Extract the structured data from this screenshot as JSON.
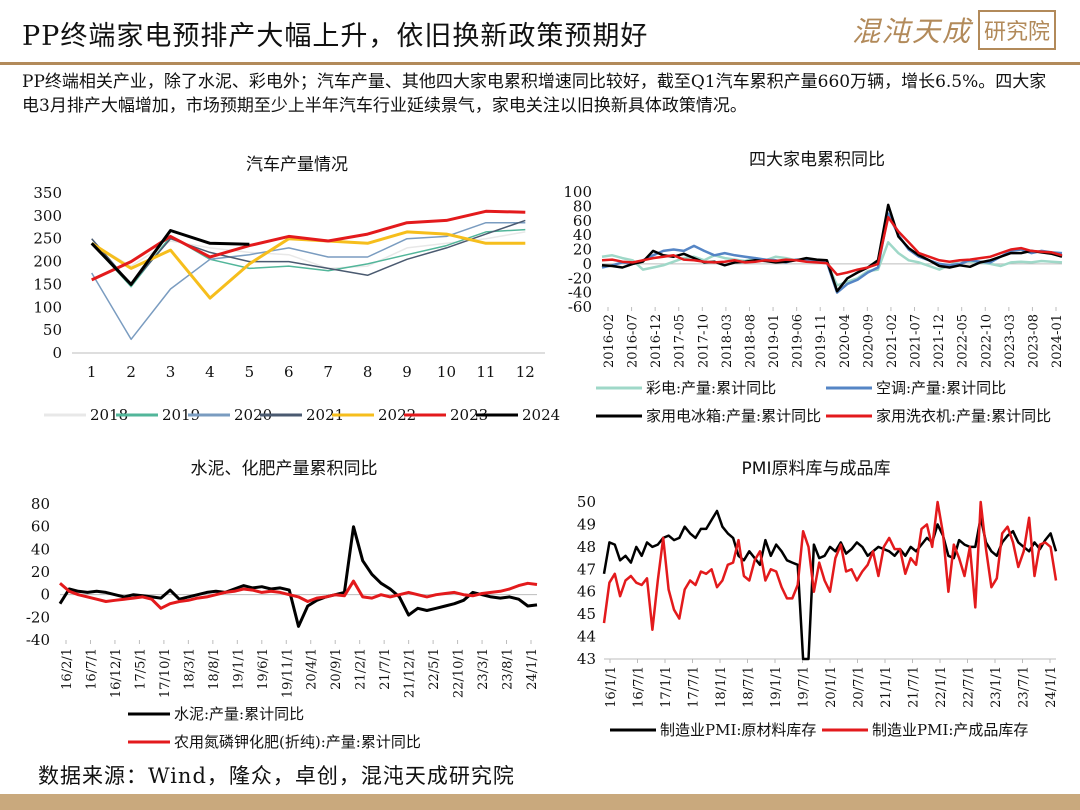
{
  "header": {
    "title": "PP终端家电预排产大幅上升，依旧换新政策预期好",
    "logo_text": "混沌天成",
    "logo_box_text": "研究院"
  },
  "summary": "PP终端相关产业，除了水泥、彩电外；汽车产量、其他四大家电累积增速同比较好，截至Q1汽车累积产量660万辆，增长6.5%。四大家电3月排产大幅增加，市场预期至少上半年汽车行业延续景气，家电关注以旧换新具体政策情况。",
  "footer": {
    "source": "数据来源：Wind，隆众，卓创，混沌天成研究院"
  },
  "colors": {
    "accent": "#b28a5a",
    "footer_band": "#c9a97d"
  },
  "chart_data": [
    {
      "type": "line",
      "title": "汽车产量情况",
      "categories": [
        "1",
        "2",
        "3",
        "4",
        "5",
        "6",
        "7",
        "8",
        "9",
        "10",
        "11",
        "12"
      ],
      "ylim": [
        0,
        350
      ],
      "yticks": [
        0,
        50,
        100,
        150,
        200,
        250,
        300,
        350
      ],
      "legend_position": "bottom",
      "series": [
        {
          "name": "2018",
          "color": "#e8e8e8",
          "width": 1.5,
          "values": [
            240,
            190,
            245,
            230,
            220,
            215,
            185,
            190,
            230,
            240,
            250,
            265
          ]
        },
        {
          "name": "2019",
          "color": "#52b69a",
          "width": 1.5,
          "values": [
            240,
            145,
            255,
            205,
            185,
            190,
            180,
            195,
            215,
            235,
            265,
            270
          ]
        },
        {
          "name": "2020",
          "color": "#7a9cc0",
          "width": 1.5,
          "values": [
            175,
            30,
            140,
            205,
            215,
            230,
            210,
            210,
            250,
            255,
            285,
            285
          ]
        },
        {
          "name": "2021",
          "color": "#4a5a70",
          "width": 1.5,
          "values": [
            250,
            150,
            250,
            220,
            200,
            200,
            185,
            170,
            205,
            230,
            260,
            290
          ]
        },
        {
          "name": "2022",
          "color": "#f6be1c",
          "width": 3,
          "values": [
            240,
            185,
            225,
            120,
            195,
            250,
            245,
            240,
            265,
            260,
            240,
            240
          ]
        },
        {
          "name": "2023",
          "color": "#e31a1c",
          "width": 3,
          "values": [
            160,
            200,
            255,
            210,
            235,
            255,
            245,
            260,
            285,
            290,
            310,
            308
          ]
        },
        {
          "name": "2024",
          "color": "#000000",
          "width": 3,
          "values": [
            240,
            150,
            268,
            240,
            238,
            null,
            null,
            null,
            null,
            null,
            null,
            null
          ]
        }
      ]
    },
    {
      "type": "line",
      "title": "四大家电累积同比",
      "x_labels": [
        "2016-02",
        "2016-07",
        "2016-12",
        "2017-05",
        "2017-10",
        "2018-03",
        "2018-08",
        "2019-01",
        "2019-06",
        "2019-11",
        "2020-04",
        "2020-09",
        "2021-02",
        "2021-07",
        "2021-12",
        "2022-05",
        "2022-10",
        "2023-03",
        "2023-08",
        "2024-01"
      ],
      "ylim": [
        -60,
        100
      ],
      "yticks": [
        -60,
        -40,
        -20,
        0,
        20,
        40,
        60,
        80,
        100
      ],
      "legend_position": "bottom",
      "series": [
        {
          "name": "彩电:产量:累计同比",
          "color": "#9fd8c8",
          "width": 2.5,
          "values": [
            10,
            12,
            8,
            5,
            -8,
            -5,
            -2,
            3,
            8,
            10,
            5,
            12,
            8,
            6,
            4,
            8,
            5,
            10,
            8,
            5,
            6,
            4,
            2,
            -30,
            -25,
            -20,
            -10,
            -8,
            30,
            15,
            5,
            2,
            -3,
            -8,
            -2,
            5,
            3,
            2,
            0,
            -3,
            2,
            3,
            2,
            4,
            3,
            2
          ]
        },
        {
          "name": "空调:产量:累计同比",
          "color": "#5585c5",
          "width": 2.5,
          "values": [
            -5,
            -2,
            2,
            0,
            5,
            12,
            18,
            20,
            18,
            25,
            18,
            12,
            15,
            12,
            10,
            8,
            6,
            5,
            2,
            6,
            5,
            3,
            2,
            -40,
            -28,
            -22,
            -12,
            -5,
            70,
            40,
            20,
            10,
            5,
            0,
            -2,
            0,
            5,
            3,
            2,
            10,
            18,
            20,
            15,
            18,
            16,
            15
          ]
        },
        {
          "name": "家用电冰箱:产量:累计同比",
          "color": "#000000",
          "width": 2.5,
          "values": [
            -2,
            -3,
            -5,
            0,
            3,
            18,
            12,
            10,
            14,
            8,
            2,
            3,
            -2,
            2,
            3,
            5,
            4,
            2,
            3,
            5,
            8,
            6,
            5,
            -38,
            -20,
            -12,
            -5,
            5,
            82,
            38,
            22,
            12,
            5,
            -3,
            -5,
            -2,
            -4,
            2,
            5,
            10,
            15,
            15,
            18,
            16,
            14,
            10
          ]
        },
        {
          "name": "家用洗衣机:产量:累计同比",
          "color": "#e31a1c",
          "width": 2.5,
          "values": [
            5,
            6,
            3,
            2,
            5,
            8,
            10,
            12,
            6,
            5,
            3,
            2,
            3,
            5,
            2,
            3,
            5,
            4,
            6,
            5,
            3,
            2,
            1,
            -15,
            -12,
            -8,
            -5,
            0,
            65,
            45,
            30,
            15,
            10,
            5,
            3,
            5,
            6,
            8,
            10,
            15,
            20,
            22,
            18,
            17,
            16,
            12
          ]
        }
      ]
    },
    {
      "type": "line",
      "title": "水泥、化肥产量累积同比",
      "x_labels": [
        "16/2/1",
        "16/7/1",
        "16/12/1",
        "17/5/1",
        "17/10/1",
        "18/3/1",
        "18/8/1",
        "19/1/1",
        "19/6/1",
        "19/11/1",
        "20/4/1",
        "20/9/1",
        "21/2/1",
        "21/7/1",
        "21/12/1",
        "22/5/1",
        "22/10/1",
        "23/3/1",
        "23/8/1",
        "24/1/1"
      ],
      "ylim": [
        -40,
        80
      ],
      "yticks": [
        -40,
        -20,
        0,
        20,
        40,
        60,
        80
      ],
      "legend_position": "bottom",
      "series": [
        {
          "name": "水泥:产量:累计同比",
          "color": "#000000",
          "width": 3,
          "values": [
            -8,
            5,
            3,
            2,
            3,
            2,
            0,
            -2,
            0,
            -1,
            -2,
            -3,
            4,
            -4,
            -2,
            0,
            2,
            3,
            2,
            5,
            8,
            6,
            7,
            5,
            6,
            4,
            -28,
            -10,
            -5,
            -2,
            0,
            2,
            60,
            30,
            18,
            10,
            5,
            -2,
            -18,
            -12,
            -14,
            -12,
            -10,
            -8,
            -5,
            2,
            0,
            -2,
            -3,
            -2,
            -4,
            -10,
            -9
          ]
        },
        {
          "name": "农用氮磷钾化肥(折纯):产量:累计同比",
          "color": "#e31a1c",
          "width": 3,
          "values": [
            10,
            3,
            0,
            -2,
            -4,
            -6,
            -5,
            -4,
            -3,
            -2,
            -4,
            -12,
            -8,
            -6,
            -5,
            -3,
            -2,
            0,
            2,
            3,
            5,
            4,
            2,
            3,
            2,
            0,
            -2,
            -6,
            -3,
            -2,
            0,
            -1,
            12,
            -2,
            -3,
            0,
            -2,
            0,
            2,
            0,
            -2,
            0,
            1,
            2,
            0,
            -1,
            1,
            2,
            3,
            5,
            8,
            10,
            9
          ]
        }
      ]
    },
    {
      "type": "line",
      "title": "PMI原料库与成品库",
      "x_labels": [
        "16/1/1",
        "16/7/1",
        "17/1/1",
        "17/7/1",
        "18/1/1",
        "18/7/1",
        "19/1/1",
        "19/7/1",
        "20/1/1",
        "20/7/1",
        "21/1/1",
        "21/7/1",
        "22/1/1",
        "22/7/1",
        "23/1/1",
        "23/7/1",
        "24/1/1"
      ],
      "ylim": [
        43,
        50
      ],
      "yticks": [
        43,
        44,
        45,
        46,
        47,
        48,
        49,
        50
      ],
      "legend_position": "bottom",
      "series": [
        {
          "name": "制造业PMI:原材料库存",
          "color": "#000000",
          "width": 2.5,
          "values": [
            46.8,
            48.2,
            48.1,
            47.4,
            47.6,
            47.3,
            48.0,
            47.6,
            48.2,
            48.0,
            48.1,
            48.4,
            48.5,
            48.3,
            48.4,
            48.9,
            48.6,
            48.4,
            48.8,
            48.8,
            49.2,
            49.6,
            48.9,
            48.6,
            48.4,
            47.6,
            47.4,
            47.8,
            47.5,
            47.2,
            48.3,
            47.6,
            48.1,
            47.8,
            47.4,
            47.3,
            47.2,
            43,
            42.9,
            48.1,
            47.5,
            47.6,
            48.0,
            47.8,
            48.2,
            47.7,
            47.9,
            48.2,
            48.0,
            47.6,
            47.8,
            48.0,
            47.9,
            47.8,
            47.6,
            47.9,
            47.6,
            48.0,
            47.8,
            48.1,
            48.4,
            48.2,
            49.0,
            48.5,
            47.6,
            47.5,
            48.3,
            48.1,
            48.0,
            48.0,
            49.3,
            48.2,
            47.8,
            47.6,
            48.2,
            48.5,
            48.7,
            48.2,
            48.0,
            47.8,
            48.2,
            47.9,
            48.3,
            48.6,
            47.8
          ]
        },
        {
          "name": "制造业PMI:产成品库存",
          "color": "#e31a1c",
          "width": 2.5,
          "values": [
            44.6,
            46.4,
            46.8,
            45.8,
            46.5,
            46.7,
            46.4,
            46.3,
            46.6,
            44.3,
            46.5,
            48.4,
            46.1,
            45.2,
            44.8,
            46.1,
            46.5,
            46.3,
            46.9,
            46.8,
            47.0,
            46.2,
            46.5,
            47.2,
            47.3,
            48.3,
            46.7,
            46.5,
            47.4,
            47.8,
            46.5,
            47.0,
            46.9,
            46.2,
            45.7,
            45.7,
            46.3,
            48.7,
            48.0,
            46.0,
            47.3,
            46.5,
            46.0,
            47.5,
            48.1,
            46.9,
            47.0,
            46.5,
            46.9,
            47.2,
            47.8,
            46.7,
            48.0,
            48.4,
            47.9,
            47.9,
            46.8,
            47.5,
            47.2,
            48.8,
            49.0,
            48.0,
            50.0,
            48.6,
            46.0,
            48.1,
            47.5,
            46.7,
            48.0,
            45.3,
            50.0,
            47.9,
            46.2,
            46.6,
            48.6,
            48.9,
            48.2,
            47.1,
            47.8,
            49.3,
            46.7,
            48.1,
            48.2,
            48.0,
            46.5
          ]
        }
      ]
    }
  ]
}
